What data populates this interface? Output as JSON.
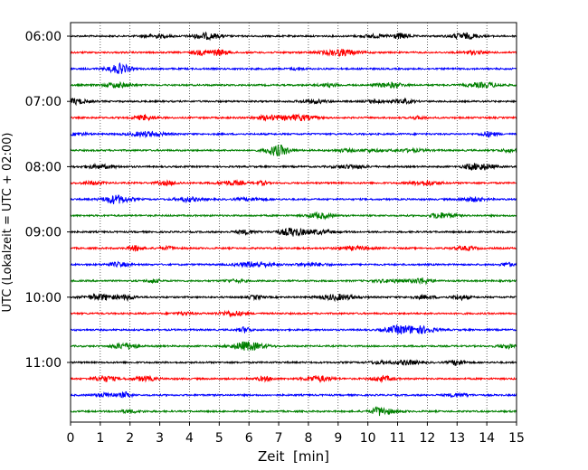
{
  "chart_data": {
    "type": "line",
    "title": "",
    "xlabel": "Zeit  [min]",
    "ylabel": "UTC (Lokalzeit = UTC + 02:00)",
    "xlim": [
      0,
      15
    ],
    "x_ticks": [
      "0",
      "1",
      "2",
      "3",
      "4",
      "5",
      "6",
      "7",
      "8",
      "9",
      "10",
      "11",
      "12",
      "13",
      "14",
      "15"
    ],
    "y_ticks": [
      {
        "label": "06:00",
        "trace_index": 0
      },
      {
        "label": "07:00",
        "trace_index": 4
      },
      {
        "label": "08:00",
        "trace_index": 8
      },
      {
        "label": "09:00",
        "trace_index": 12
      },
      {
        "label": "10:00",
        "trace_index": 16
      },
      {
        "label": "11:00",
        "trace_index": 20
      }
    ],
    "grid": "vertical dotted at each minute",
    "trace_interval_minutes": 15,
    "trace_start_times": [
      "06:00",
      "06:15",
      "06:30",
      "06:45",
      "07:00",
      "07:15",
      "07:30",
      "07:45",
      "08:00",
      "08:15",
      "08:30",
      "08:45",
      "09:00",
      "09:15",
      "09:30",
      "09:45",
      "10:00",
      "10:15",
      "10:30",
      "10:45",
      "11:00",
      "11:15",
      "11:30",
      "11:45"
    ],
    "trace_colors": [
      "#000000",
      "#ff0000",
      "#0000ff",
      "#008000"
    ],
    "legend": "none"
  }
}
